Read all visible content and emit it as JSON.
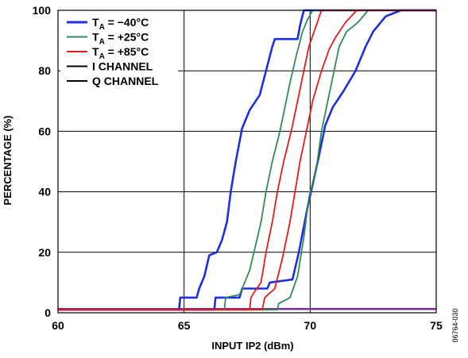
{
  "chart_data": {
    "type": "line",
    "xlabel": "INPUT IP2 (dBm)",
    "ylabel": "PERCENTAGE (%)",
    "xlim": [
      60,
      75
    ],
    "ylim": [
      0,
      100
    ],
    "x_ticks": [
      60,
      65,
      70,
      75
    ],
    "y_ticks": [
      0,
      20,
      40,
      60,
      80,
      100
    ],
    "grid": true,
    "legend_position": "top-left",
    "figure_id": "06764-030",
    "legend": {
      "temperatures": [
        {
          "sub": "A",
          "value": "= −40°C",
          "color": "#1f2ee0"
        },
        {
          "sub": "A",
          "value": "= +25°C",
          "color": "#2e8b57"
        },
        {
          "sub": "A",
          "value": "= +85°C",
          "color": "#e41a1c"
        }
      ],
      "channels": [
        {
          "label": "I CHANNEL",
          "color": "#000000"
        },
        {
          "label": "Q CHANNEL",
          "color": "#000000"
        }
      ]
    },
    "colors": {
      "t_m40": "#1f2ee0",
      "t_25": "#2e8b57",
      "t_85": "#e41a1c",
      "baseline": "#7b2d8b"
    },
    "series": [
      {
        "temperature": "-40°C",
        "channel": "I",
        "color": "#1f2ee0",
        "points": [
          [
            60,
            1
          ],
          [
            64.8,
            1
          ],
          [
            64.85,
            5
          ],
          [
            65.5,
            5
          ],
          [
            65.6,
            8
          ],
          [
            65.8,
            12
          ],
          [
            66,
            19
          ],
          [
            66.3,
            20
          ],
          [
            66.5,
            24
          ],
          [
            66.7,
            30
          ],
          [
            66.85,
            40
          ],
          [
            67.05,
            50
          ],
          [
            67.3,
            61
          ],
          [
            67.6,
            67
          ],
          [
            68,
            72
          ],
          [
            68.25,
            80
          ],
          [
            68.5,
            88
          ],
          [
            68.6,
            90.5
          ],
          [
            69.5,
            90.5
          ],
          [
            69.6,
            95
          ],
          [
            69.75,
            100
          ],
          [
            75,
            100
          ]
        ]
      },
      {
        "temperature": "-40°C",
        "channel": "Q",
        "color": "#1f2ee0",
        "points": [
          [
            60,
            1
          ],
          [
            66.2,
            1
          ],
          [
            66.25,
            5
          ],
          [
            67.2,
            5
          ],
          [
            67.3,
            8
          ],
          [
            68.3,
            8
          ],
          [
            68.4,
            10
          ],
          [
            69.3,
            11
          ],
          [
            69.55,
            20
          ],
          [
            69.9,
            35
          ],
          [
            70.3,
            50
          ],
          [
            70.6,
            62
          ],
          [
            70.9,
            68
          ],
          [
            71.3,
            73
          ],
          [
            71.8,
            80
          ],
          [
            72.2,
            88
          ],
          [
            72.5,
            93
          ],
          [
            73,
            98
          ],
          [
            73.6,
            100
          ],
          [
            75,
            100
          ]
        ]
      },
      {
        "temperature": "+25°C",
        "channel": "I",
        "color": "#2e8b57",
        "points": [
          [
            60,
            1
          ],
          [
            66.6,
            1
          ],
          [
            66.65,
            5
          ],
          [
            67.2,
            6
          ],
          [
            67.6,
            14
          ],
          [
            67.8,
            21
          ],
          [
            68.05,
            30
          ],
          [
            68.25,
            40
          ],
          [
            68.5,
            50
          ],
          [
            68.8,
            60
          ],
          [
            69,
            68
          ],
          [
            69.2,
            76
          ],
          [
            69.45,
            85
          ],
          [
            69.7,
            93
          ],
          [
            69.9,
            97
          ],
          [
            70.1,
            100
          ],
          [
            75,
            100
          ]
        ]
      },
      {
        "temperature": "+25°C",
        "channel": "Q",
        "color": "#2e8b57",
        "points": [
          [
            60,
            1
          ],
          [
            68.7,
            1
          ],
          [
            68.75,
            3
          ],
          [
            69.2,
            5
          ],
          [
            69.5,
            12
          ],
          [
            69.75,
            25
          ],
          [
            69.95,
            38
          ],
          [
            70.25,
            48
          ],
          [
            70.45,
            60
          ],
          [
            70.7,
            70
          ],
          [
            70.95,
            80
          ],
          [
            71.15,
            88
          ],
          [
            71.45,
            93
          ],
          [
            71.9,
            96
          ],
          [
            72.3,
            100
          ],
          [
            75,
            100
          ]
        ]
      },
      {
        "temperature": "+85°C",
        "channel": "I",
        "color": "#e41a1c",
        "points": [
          [
            60,
            1
          ],
          [
            67.6,
            1
          ],
          [
            67.65,
            5
          ],
          [
            67.8,
            7
          ],
          [
            68.05,
            10
          ],
          [
            68.25,
            20
          ],
          [
            68.5,
            30
          ],
          [
            68.7,
            40
          ],
          [
            68.95,
            50
          ],
          [
            69.25,
            60
          ],
          [
            69.5,
            70
          ],
          [
            69.75,
            80
          ],
          [
            69.95,
            88
          ],
          [
            70.2,
            94
          ],
          [
            70.45,
            100
          ],
          [
            75,
            100
          ]
        ]
      },
      {
        "temperature": "+85°C",
        "channel": "Q",
        "color": "#e41a1c",
        "points": [
          [
            60,
            1
          ],
          [
            68.1,
            1
          ],
          [
            68.2,
            5
          ],
          [
            68.6,
            8
          ],
          [
            68.9,
            18
          ],
          [
            69.2,
            30
          ],
          [
            69.4,
            40
          ],
          [
            69.6,
            50
          ],
          [
            69.85,
            60
          ],
          [
            70.1,
            70
          ],
          [
            70.45,
            80
          ],
          [
            70.75,
            87
          ],
          [
            71,
            91
          ],
          [
            71.4,
            96
          ],
          [
            71.85,
            100
          ],
          [
            75,
            100
          ]
        ]
      }
    ]
  }
}
